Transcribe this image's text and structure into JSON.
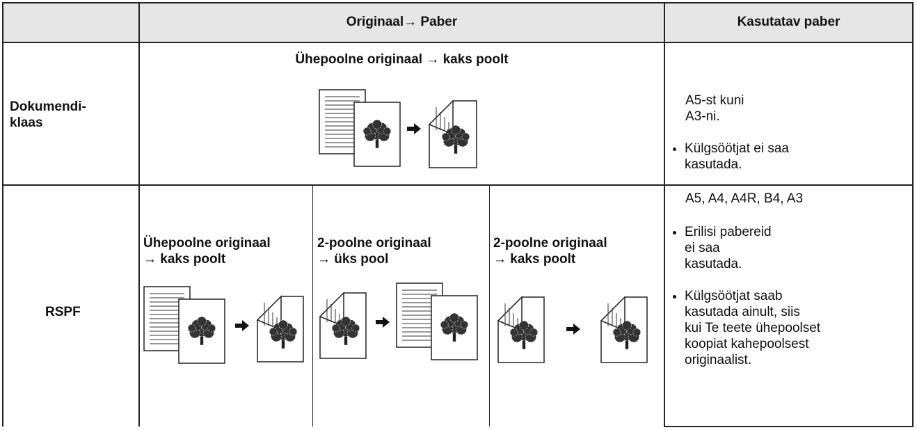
{
  "table": {
    "header": {
      "mode": "Originaal→ Paber",
      "paper": "Kasutatav paber"
    },
    "rows": [
      {
        "label": "Dokumendi-\nklaas",
        "modes": [
          {
            "title": "Ühepoolne originaal → kaks poolt"
          }
        ],
        "paper": {
          "intro": "A5-st kuni\nA3-ni.",
          "bullets": [
            "Külgsöötjat ei saa\nkasutada."
          ]
        }
      },
      {
        "label": "RSPF",
        "modes": [
          {
            "title": "Ühepoolne originaal\n→ kaks poolt"
          },
          {
            "title": "2-poolne originaal\n→ üks pool"
          },
          {
            "title": "2-poolne originaal\n→ kaks poolt"
          }
        ],
        "paper": {
          "intro": "A5, A4, A4R, B4, A3",
          "bullets": [
            "Erilisi pabereid\nei saa\nkasutada.",
            "Külgsöötjat saab\nkasutada ainult, siis\nkui Te teete ühepoolset\nkoopiat kahepoolsest\noriginaalist."
          ]
        }
      }
    ]
  }
}
